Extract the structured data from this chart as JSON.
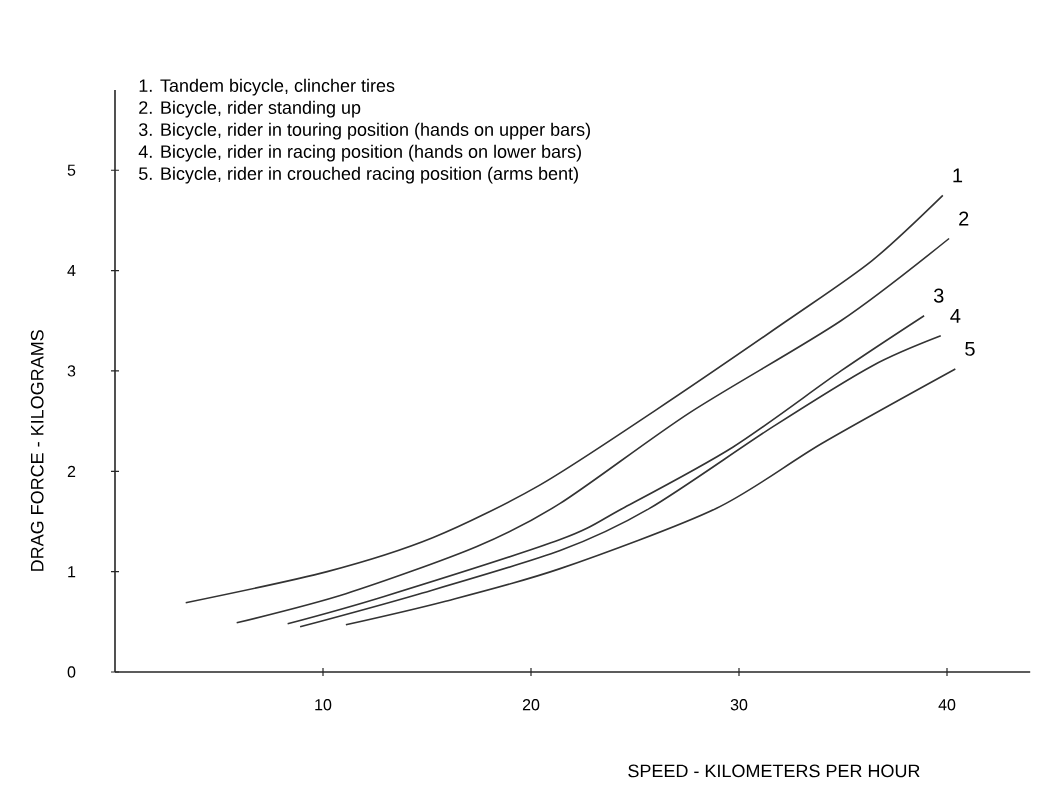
{
  "chart_data": {
    "type": "line",
    "xlabel": "SPEED - KILOMETERS PER HOUR",
    "ylabel": "DRAG FORCE - KILOGRAMS",
    "xlim": [
      0,
      44
    ],
    "ylim": [
      0,
      5.8
    ],
    "xticks": [
      10,
      20,
      30,
      40
    ],
    "yticks": [
      0,
      1,
      2,
      3,
      4,
      5
    ],
    "legend": false,
    "annotations": [
      "1. Tandem bicycle, clincher tires",
      "2. Bicycle, rider standing up",
      "3. Bicycle, rider in touring position (hands on upper bars)",
      "4. Bicycle, rider in racing position (hands on lower bars)",
      "5. Bicycle, rider in crouched racing position (arms bent)"
    ],
    "series": [
      {
        "name": "1",
        "color": "#333333",
        "x": [
          3.4,
          10.2,
          15.3,
          20.4,
          26.0,
          32.3,
          36.4,
          39.8
        ],
        "values": [
          0.69,
          1.0,
          1.34,
          1.86,
          2.61,
          3.5,
          4.1,
          4.75
        ]
      },
      {
        "name": "2",
        "color": "#333333",
        "x": [
          5.85,
          11.1,
          17.4,
          21.4,
          27.6,
          34.9,
          40.1
        ],
        "values": [
          0.49,
          0.78,
          1.25,
          1.68,
          2.58,
          3.5,
          4.32
        ]
      },
      {
        "name": "3",
        "color": "#333333",
        "x": [
          8.3,
          12.9,
          21.4,
          24.4,
          29.7,
          34.9,
          38.9
        ],
        "values": [
          0.48,
          0.75,
          1.32,
          1.63,
          2.24,
          3.0,
          3.55
        ]
      },
      {
        "name": "4",
        "color": "#333333",
        "x": [
          8.9,
          14.5,
          21.4,
          25.7,
          31.6,
          36.4,
          39.7
        ],
        "values": [
          0.45,
          0.77,
          1.21,
          1.63,
          2.44,
          3.05,
          3.35
        ]
      },
      {
        "name": "5",
        "color": "#333333",
        "x": [
          11.1,
          15.8,
          21.4,
          28.9,
          34.0,
          40.4
        ],
        "values": [
          0.47,
          0.7,
          1.03,
          1.63,
          2.28,
          3.02
        ]
      }
    ]
  }
}
